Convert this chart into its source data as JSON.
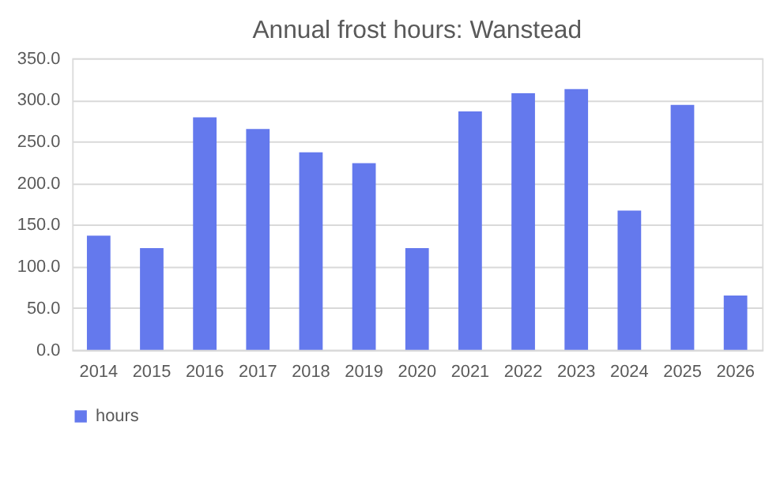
{
  "chart_data": {
    "type": "bar",
    "title": "Annual frost hours: Wanstead",
    "categories": [
      "2014",
      "2015",
      "2016",
      "2017",
      "2018",
      "2019",
      "2020",
      "2021",
      "2022",
      "2023",
      "2024",
      "2025",
      "2026"
    ],
    "series": [
      {
        "name": "hours",
        "color": "#6479ed",
        "values": [
          137,
          122,
          279,
          265,
          237,
          224,
          122,
          286,
          308,
          313,
          167,
          294,
          65
        ]
      }
    ],
    "ylim": [
      0,
      350
    ],
    "yticks": [
      {
        "value": 0,
        "label": "0.0"
      },
      {
        "value": 50,
        "label": "50.0"
      },
      {
        "value": 100,
        "label": "100.0"
      },
      {
        "value": 150,
        "label": "150.0"
      },
      {
        "value": 200,
        "label": "200.0"
      },
      {
        "value": 250,
        "label": "250.0"
      },
      {
        "value": 300,
        "label": "300.0"
      },
      {
        "value": 350,
        "label": "350.0"
      }
    ],
    "grid": "y",
    "legend": "bottom"
  }
}
